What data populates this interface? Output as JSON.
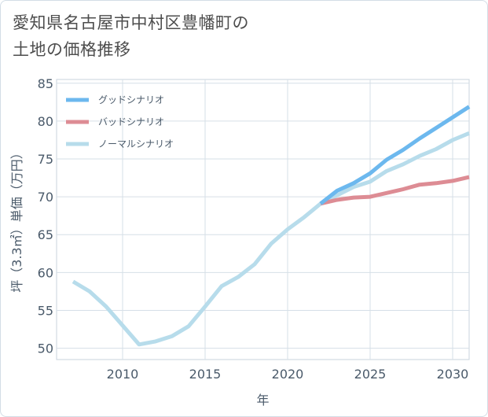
{
  "title_lines": [
    "愛知県名古屋市中村区豊幡町の",
    "土地の価格推移"
  ],
  "chart_data": {
    "type": "line",
    "xlabel": "年",
    "ylabel": "坪（3.3㎡）単価（万円）",
    "xlim": [
      2006,
      2031
    ],
    "ylim": [
      48.5,
      85.5
    ],
    "x_ticks": [
      2010,
      2015,
      2020,
      2025,
      2030
    ],
    "y_ticks": [
      50,
      55,
      60,
      65,
      70,
      75,
      80,
      85
    ],
    "grid": true,
    "legend_position": "top-left",
    "series": [
      {
        "name": "グッドシナリオ",
        "color": "#6cb8ee",
        "x": [
          2022,
          2023,
          2024,
          2025,
          2026,
          2027,
          2028,
          2029,
          2030,
          2031
        ],
        "y": [
          69.1,
          70.8,
          71.8,
          73.1,
          74.9,
          76.2,
          77.7,
          79.1,
          80.5,
          81.9
        ]
      },
      {
        "name": "バッドシナリオ",
        "color": "#dd8c94",
        "x": [
          2022,
          2023,
          2024,
          2025,
          2026,
          2027,
          2028,
          2029,
          2030,
          2031
        ],
        "y": [
          69.1,
          69.6,
          69.9,
          70.0,
          70.5,
          71.0,
          71.6,
          71.8,
          72.1,
          72.6
        ]
      },
      {
        "name": "ノーマルシナリオ",
        "color": "#b7dceb",
        "x": [
          2007,
          2008,
          2009,
          2010,
          2011,
          2012,
          2013,
          2014,
          2015,
          2016,
          2017,
          2018,
          2019,
          2020,
          2021,
          2022,
          2023,
          2024,
          2025,
          2026,
          2027,
          2028,
          2029,
          2030,
          2031
        ],
        "y": [
          58.8,
          57.5,
          55.5,
          53.0,
          50.5,
          50.9,
          51.6,
          52.9,
          55.5,
          58.2,
          59.4,
          61.1,
          63.8,
          65.7,
          67.3,
          69.1,
          70.2,
          71.3,
          72.0,
          73.4,
          74.3,
          75.4,
          76.3,
          77.5,
          78.4
        ]
      }
    ]
  }
}
